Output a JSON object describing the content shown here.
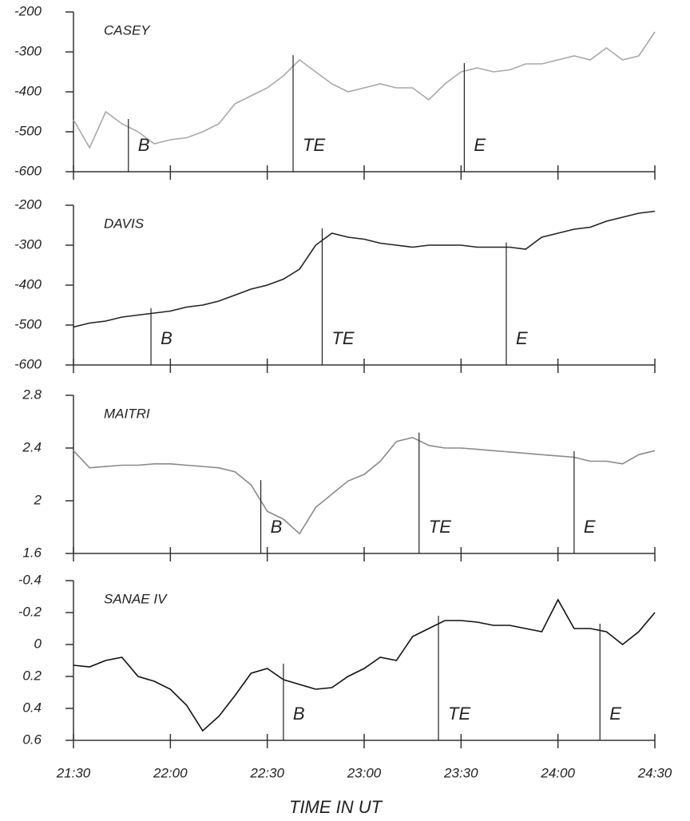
{
  "chart_data": [
    {
      "type": "line",
      "title": "CASEY",
      "color": "#a8a8a8",
      "xlim": [
        1290,
        1470
      ],
      "xticks": [
        {
          "value": 1290,
          "label": "21:30"
        },
        {
          "value": 1320,
          "label": "22:00"
        },
        {
          "value": 1350,
          "label": "22:30"
        },
        {
          "value": 1380,
          "label": "23:00"
        },
        {
          "value": 1410,
          "label": "23:30"
        },
        {
          "value": 1440,
          "label": "24:00"
        },
        {
          "value": 1470,
          "label": "24:30"
        }
      ],
      "ylim": [
        -600,
        -200
      ],
      "yticks": [
        -200,
        -300,
        -400,
        -500,
        -600
      ],
      "x": [
        1290,
        1295,
        1300,
        1305,
        1310,
        1315,
        1320,
        1325,
        1330,
        1335,
        1340,
        1345,
        1350,
        1355,
        1360,
        1365,
        1370,
        1375,
        1380,
        1385,
        1390,
        1395,
        1400,
        1405,
        1410,
        1415,
        1420,
        1425,
        1430,
        1435,
        1440,
        1445,
        1450,
        1455,
        1460,
        1465,
        1470
      ],
      "values": [
        -470,
        -540,
        -450,
        -480,
        -500,
        -530,
        -520,
        -515,
        -500,
        -480,
        -430,
        -410,
        -390,
        -360,
        -320,
        -350,
        -380,
        -400,
        -390,
        -380,
        -390,
        -390,
        -420,
        -380,
        -350,
        -340,
        -350,
        -345,
        -330,
        -330,
        -320,
        -310,
        -320,
        -290,
        -320,
        -310,
        -250
      ],
      "annotations": [
        {
          "label": "B",
          "x": 1307
        },
        {
          "label": "TE",
          "x": 1358
        },
        {
          "label": "E",
          "x": 1411
        }
      ]
    },
    {
      "type": "line",
      "title": "DAVIS",
      "color": "#222222",
      "xlim": [
        1290,
        1470
      ],
      "xticks": [
        {
          "value": 1290,
          "label": "21:30"
        },
        {
          "value": 1320,
          "label": "22:00"
        },
        {
          "value": 1350,
          "label": "22:30"
        },
        {
          "value": 1380,
          "label": "23:00"
        },
        {
          "value": 1410,
          "label": "23:30"
        },
        {
          "value": 1440,
          "label": "24:00"
        },
        {
          "value": 1470,
          "label": "24:30"
        }
      ],
      "ylim": [
        -600,
        -200
      ],
      "yticks": [
        -200,
        -300,
        -400,
        -500,
        -600
      ],
      "x": [
        1290,
        1295,
        1300,
        1305,
        1310,
        1315,
        1320,
        1325,
        1330,
        1335,
        1340,
        1345,
        1350,
        1355,
        1360,
        1365,
        1370,
        1375,
        1380,
        1385,
        1390,
        1395,
        1400,
        1405,
        1410,
        1415,
        1420,
        1425,
        1430,
        1435,
        1440,
        1445,
        1450,
        1455,
        1460,
        1465,
        1470
      ],
      "values": [
        -505,
        -495,
        -490,
        -480,
        -475,
        -470,
        -465,
        -455,
        -450,
        -440,
        -425,
        -410,
        -400,
        -385,
        -360,
        -300,
        -270,
        -280,
        -285,
        -295,
        -300,
        -305,
        -300,
        -300,
        -300,
        -305,
        -305,
        -305,
        -310,
        -280,
        -270,
        -260,
        -255,
        -240,
        -230,
        -220,
        -215
      ],
      "annotations": [
        {
          "label": "B",
          "x": 1314
        },
        {
          "label": "TE",
          "x": 1367
        },
        {
          "label": "E",
          "x": 1424
        }
      ]
    },
    {
      "type": "line",
      "title": "MAITRI",
      "color": "#8a8a8a",
      "xlim": [
        1290,
        1470
      ],
      "xticks": [
        {
          "value": 1290,
          "label": "21:30"
        },
        {
          "value": 1320,
          "label": "22:00"
        },
        {
          "value": 1350,
          "label": "22:30"
        },
        {
          "value": 1380,
          "label": "23:00"
        },
        {
          "value": 1410,
          "label": "23:30"
        },
        {
          "value": 1440,
          "label": "24:00"
        },
        {
          "value": 1470,
          "label": "24:30"
        }
      ],
      "ylim": [
        1.6,
        2.8
      ],
      "yticks": [
        2.8,
        2.4,
        2,
        1.6
      ],
      "x": [
        1290,
        1295,
        1300,
        1305,
        1310,
        1315,
        1320,
        1325,
        1330,
        1335,
        1340,
        1345,
        1350,
        1355,
        1360,
        1365,
        1370,
        1375,
        1380,
        1385,
        1390,
        1395,
        1400,
        1405,
        1410,
        1415,
        1420,
        1425,
        1430,
        1435,
        1440,
        1445,
        1450,
        1455,
        1460,
        1465,
        1470
      ],
      "values": [
        2.38,
        2.25,
        2.26,
        2.27,
        2.27,
        2.28,
        2.28,
        2.27,
        2.26,
        2.25,
        2.22,
        2.12,
        1.92,
        1.86,
        1.75,
        1.95,
        2.05,
        2.15,
        2.2,
        2.3,
        2.45,
        2.48,
        2.42,
        2.4,
        2.4,
        2.39,
        2.38,
        2.37,
        2.36,
        2.35,
        2.34,
        2.33,
        2.3,
        2.3,
        2.28,
        2.35,
        2.38
      ],
      "annotations": [
        {
          "label": "B",
          "x": 1348
        },
        {
          "label": "TE",
          "x": 1397
        },
        {
          "label": "E",
          "x": 1445
        }
      ]
    },
    {
      "type": "line",
      "title": "SANAE IV",
      "color": "#111111",
      "xlim": [
        1290,
        1470
      ],
      "xticks": [
        {
          "value": 1290,
          "label": "21:30"
        },
        {
          "value": 1320,
          "label": "22:00"
        },
        {
          "value": 1350,
          "label": "22:30"
        },
        {
          "value": 1380,
          "label": "23:00"
        },
        {
          "value": 1410,
          "label": "23:30"
        },
        {
          "value": 1440,
          "label": "24:00"
        },
        {
          "value": 1470,
          "label": "24:30"
        }
      ],
      "xlabel": "TIME IN UT",
      "ylim": [
        0.6,
        -0.4
      ],
      "yticks": [
        -0.4,
        -0.2,
        0,
        0.2,
        0.4,
        0.6
      ],
      "x": [
        1290,
        1295,
        1300,
        1305,
        1310,
        1315,
        1320,
        1325,
        1330,
        1335,
        1340,
        1345,
        1350,
        1355,
        1360,
        1365,
        1370,
        1375,
        1380,
        1385,
        1390,
        1395,
        1400,
        1405,
        1410,
        1415,
        1420,
        1425,
        1430,
        1435,
        1440,
        1445,
        1450,
        1455,
        1460,
        1465,
        1470
      ],
      "values": [
        0.13,
        0.14,
        0.1,
        0.08,
        0.2,
        0.23,
        0.28,
        0.38,
        0.54,
        0.45,
        0.32,
        0.18,
        0.15,
        0.22,
        0.25,
        0.28,
        0.27,
        0.2,
        0.15,
        0.08,
        0.1,
        -0.05,
        -0.1,
        -0.15,
        -0.15,
        -0.14,
        -0.12,
        -0.12,
        -0.1,
        -0.08,
        -0.28,
        -0.1,
        -0.1,
        -0.08,
        0.0,
        -0.08,
        -0.2
      ],
      "annotations": [
        {
          "label": "B",
          "x": 1355
        },
        {
          "label": "TE",
          "x": 1403
        },
        {
          "label": "E",
          "x": 1453
        }
      ]
    }
  ]
}
